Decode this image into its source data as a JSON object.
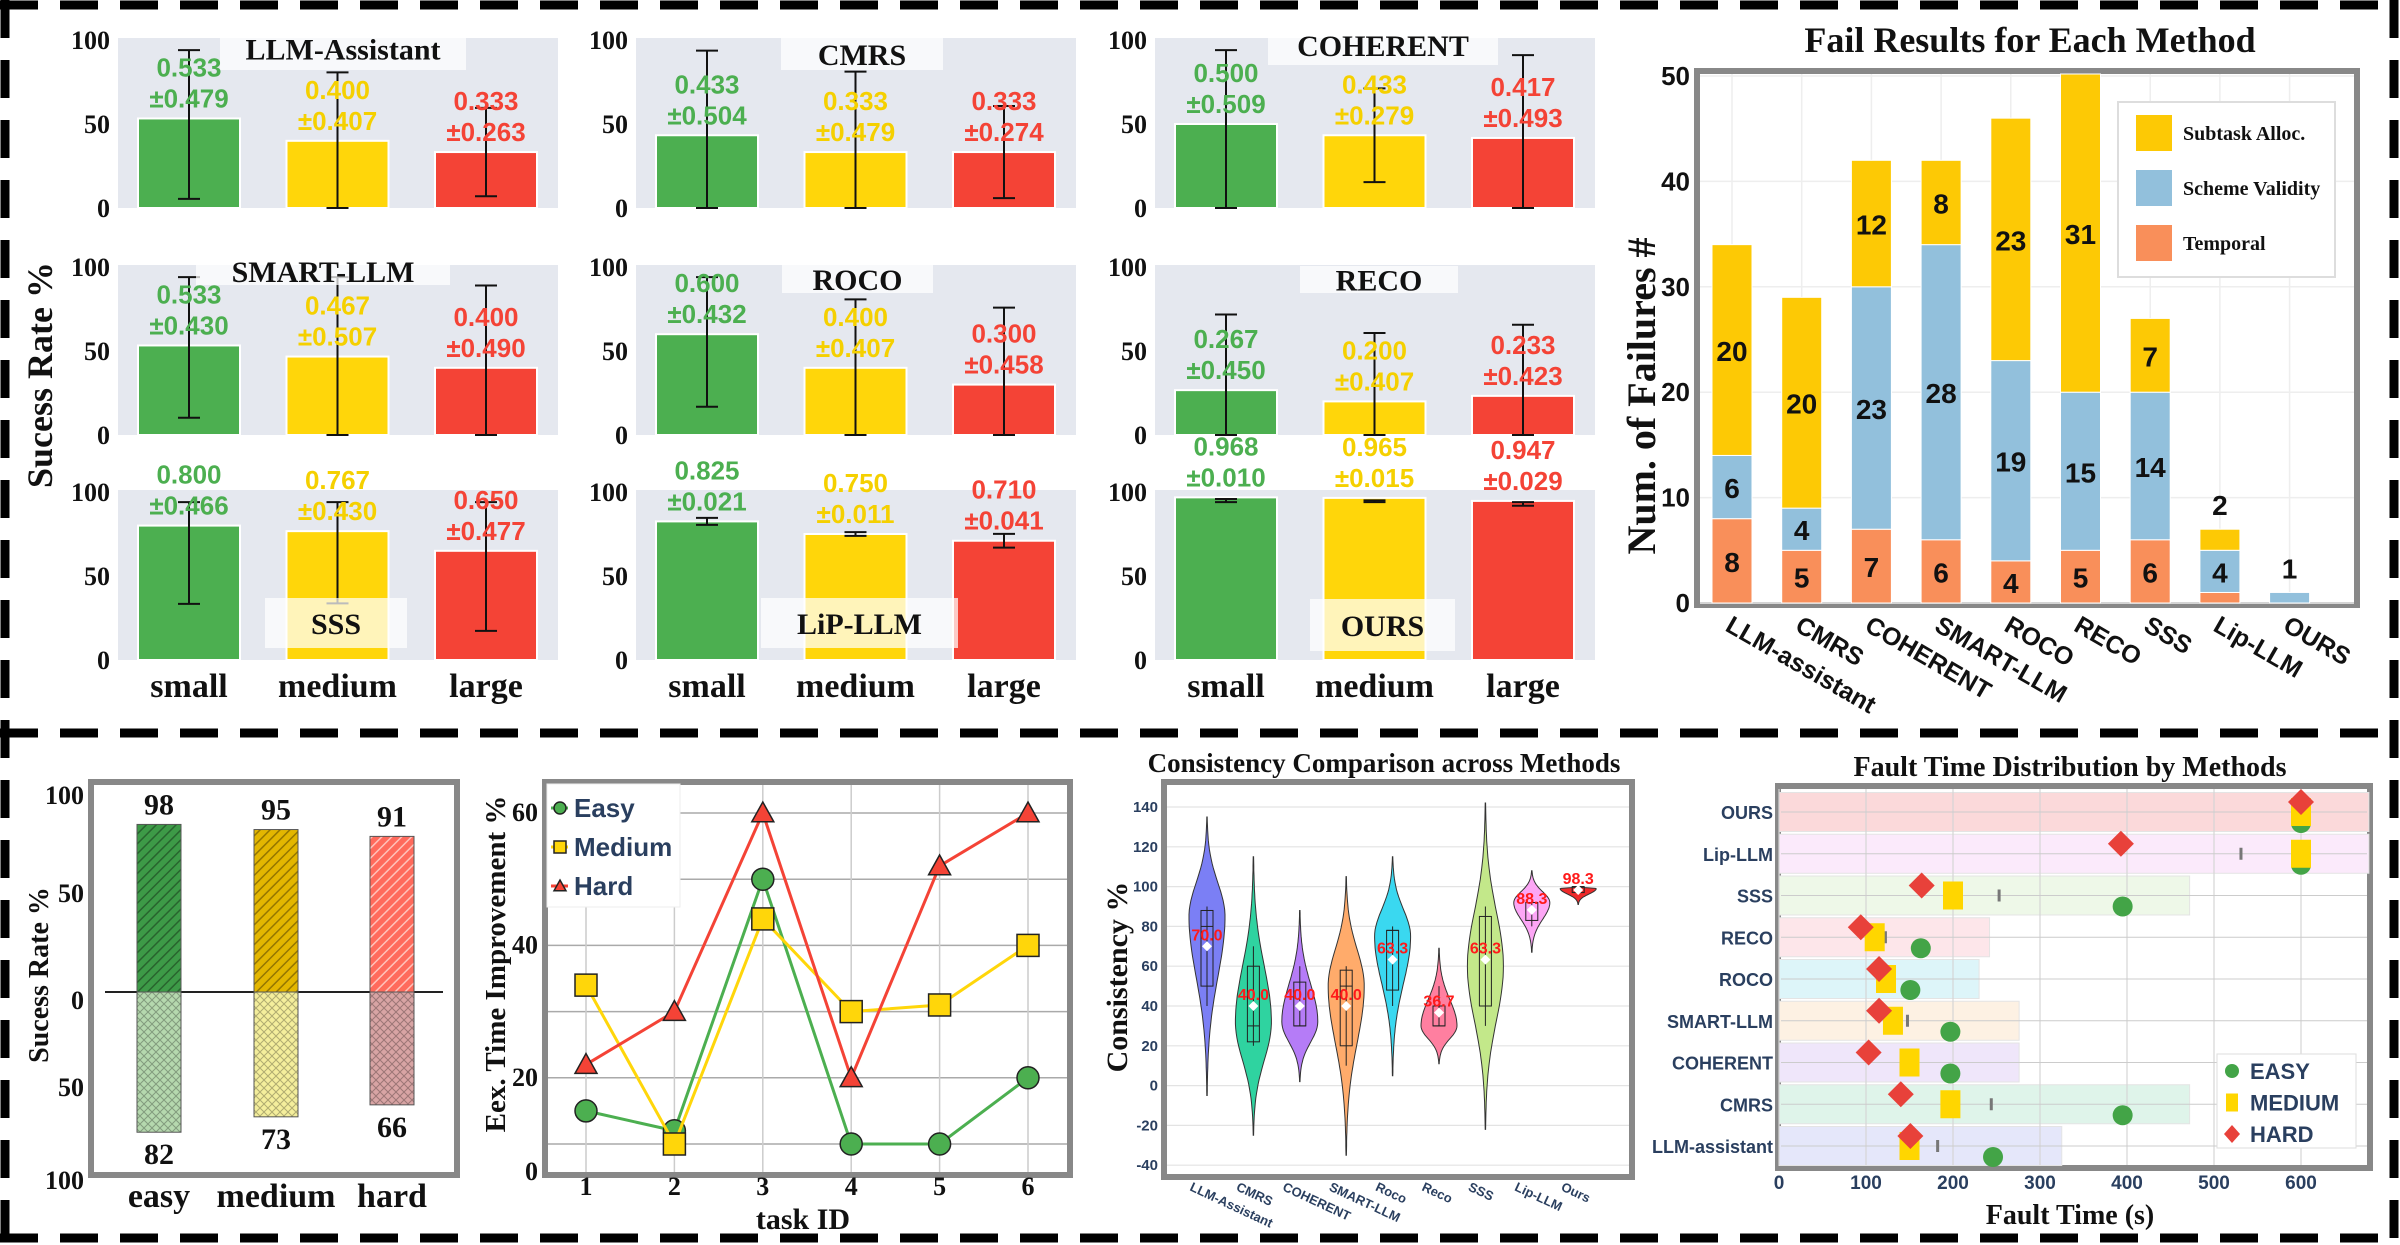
{
  "chart_data": [
    {
      "type": "bar",
      "ylabel": "Sucess Rate %",
      "categories": [
        "small",
        "medium",
        "large"
      ],
      "ylim": [
        0,
        100
      ],
      "yticks": [
        "0",
        "50",
        "100"
      ],
      "colors": [
        "#4caf50",
        "#ffd60a",
        "#f44336"
      ],
      "label_colors": [
        "#4caf50",
        "#f5d000",
        "#f44336"
      ],
      "panels": [
        {
          "title": "LLM-Assistant",
          "values": [
            "0.533",
            "0.400",
            "0.333"
          ],
          "errors": [
            "±0.479",
            "±0.407",
            "±0.263"
          ]
        },
        {
          "title": "CMRS",
          "values": [
            "0.433",
            "0.333",
            "0.333"
          ],
          "errors": [
            "±0.504",
            "±0.479",
            "±0.274"
          ]
        },
        {
          "title": "COHERENT",
          "values": [
            "0.500",
            "0.433",
            "0.417"
          ],
          "errors": [
            "±0.509",
            "±0.279",
            "±0.493"
          ]
        },
        {
          "title": "SMART-LLM",
          "values": [
            "0.533",
            "0.467",
            "0.400"
          ],
          "errors": [
            "±0.430",
            "±0.507",
            "±0.490"
          ]
        },
        {
          "title": "ROCO",
          "values": [
            "0.600",
            "0.400",
            "0.300"
          ],
          "errors": [
            "±0.432",
            "±0.407",
            "±0.458"
          ]
        },
        {
          "title": "RECO",
          "values": [
            "0.267",
            "0.200",
            "0.233"
          ],
          "errors": [
            "±0.450",
            "±0.407",
            "±0.423"
          ]
        },
        {
          "title": "SSS",
          "values": [
            "0.800",
            "0.767",
            "0.650"
          ],
          "errors": [
            "±0.466",
            "±0.430",
            "±0.477"
          ]
        },
        {
          "title": "LiP-LLM",
          "values": [
            "0.825",
            "0.750",
            "0.710"
          ],
          "errors": [
            "±0.021",
            "±0.011",
            "±0.041"
          ]
        },
        {
          "title": "OURS",
          "values": [
            "0.968",
            "0.965",
            "0.947"
          ],
          "errors": [
            "±0.010",
            "±0.015",
            "±0.029"
          ]
        }
      ]
    },
    {
      "type": "bar",
      "stacked": true,
      "title": "Fail Results for Each Method",
      "ylabel": "Num. of Failures #",
      "ylim": [
        0,
        50
      ],
      "yticks": [
        0,
        10,
        20,
        30,
        40,
        50
      ],
      "grid": true,
      "legend": "top-right",
      "categories": [
        "LLM-assistant",
        "CMRS",
        "COHERENT",
        "SMART-LLM",
        "ROCO",
        "RECO",
        "SSS",
        "Lip-LLM",
        "OURS"
      ],
      "series": [
        {
          "name": "Temporal",
          "color": "#f98f5a",
          "values": [
            8,
            5,
            7,
            6,
            4,
            5,
            6,
            1,
            0
          ]
        },
        {
          "name": "Scheme Validity",
          "color": "#92c0dc",
          "values": [
            6,
            4,
            23,
            28,
            19,
            15,
            14,
            4,
            1
          ]
        },
        {
          "name": "Subtask Alloc.",
          "color": "#fdc905",
          "values": [
            20,
            20,
            12,
            8,
            23,
            31,
            7,
            2,
            0
          ]
        }
      ]
    },
    {
      "type": "bar",
      "diverging": true,
      "ylabel": "Sucess Rate %",
      "categories": [
        "easy",
        "medium",
        "hard"
      ],
      "upper_values": [
        98,
        95,
        91
      ],
      "lower_values": [
        82,
        73,
        66
      ],
      "yticks": [
        "100",
        "50",
        "0",
        "50",
        "100"
      ],
      "colors": [
        "#3d9a47",
        "#e3b600",
        "#ff6a5c"
      ],
      "lower_colors": [
        "#b5d8ae",
        "#f4ee9c",
        "#d8a4a4"
      ]
    },
    {
      "type": "line",
      "xlabel": "task ID",
      "ylabel": "Eex. Time Improvement %",
      "x": [
        1,
        2,
        3,
        4,
        5,
        6
      ],
      "yticks": [
        0,
        20,
        40,
        60
      ],
      "grid": true,
      "legend": "top-left",
      "series": [
        {
          "name": "Easy",
          "color": "#4caf50",
          "marker": "circle",
          "values": [
            15,
            12,
            50,
            10,
            10,
            20
          ]
        },
        {
          "name": "Medium",
          "color": "#ffd60a",
          "marker": "square",
          "values": [
            34,
            10,
            44,
            30,
            31,
            40
          ]
        },
        {
          "name": "Hard",
          "color": "#f44336",
          "marker": "triangle",
          "values": [
            22,
            30,
            60,
            20,
            52,
            60
          ]
        }
      ]
    },
    {
      "type": "violin",
      "title": "Consistency Comparison across Methods",
      "ylabel": "Consistency %",
      "ylim": [
        -45,
        150
      ],
      "yticks": [
        -40,
        -20,
        0,
        20,
        40,
        60,
        80,
        100,
        120,
        140
      ],
      "categories": [
        "LLM-Assistant",
        "CMRS",
        "COHERENT",
        "SMART-LLM",
        "Roco",
        "Reco",
        "SSS",
        "Lip-LLM",
        "Ours"
      ],
      "violins": [
        {
          "color": "#7b7ff5",
          "range": [
            -5,
            135
          ],
          "mode": 85,
          "box": [
            50,
            88
          ],
          "median": 80,
          "whiskers": [
            40,
            90
          ],
          "mean": 70.0,
          "mean_label": "70.0"
        },
        {
          "color": "#2fd3a0",
          "range": [
            -25,
            115
          ],
          "mode": 32,
          "box": [
            22,
            60
          ],
          "median": 30,
          "whiskers": [
            20,
            70
          ],
          "mean": 40.0,
          "mean_label": "40.0"
        },
        {
          "color": "#b57cf7",
          "range": [
            2,
            88
          ],
          "mode": 32,
          "box": [
            30,
            52
          ],
          "median": 30,
          "whiskers": [
            30,
            60
          ],
          "mean": 40.0,
          "mean_label": "40.0"
        },
        {
          "color": "#ffab6b",
          "range": [
            -35,
            105
          ],
          "mode": 50,
          "box": [
            20,
            58
          ],
          "median": 50,
          "whiskers": [
            10,
            60
          ],
          "mean": 40.0,
          "mean_label": "40.0"
        },
        {
          "color": "#3ad8f0",
          "range": [
            5,
            115
          ],
          "mode": 75,
          "box": [
            48,
            78
          ],
          "median": 78,
          "whiskers": [
            40,
            80
          ],
          "mean": 63.3,
          "mean_label": "63.3"
        },
        {
          "color": "#ff7fa0",
          "range": [
            11,
            69
          ],
          "mode": 30,
          "box": [
            30,
            40
          ],
          "median": 30,
          "whiskers": [
            30,
            50
          ],
          "mean": 36.7,
          "mean_label": "36.7"
        },
        {
          "color": "#c3e88a",
          "range": [
            -22,
            142
          ],
          "mode": 60,
          "box": [
            40,
            85
          ],
          "median": 40,
          "whiskers": [
            30,
            90
          ],
          "mean": 63.3,
          "mean_label": "63.3"
        },
        {
          "color": "#fca6f5",
          "range": [
            67,
            108
          ],
          "mode": 92,
          "box": [
            83,
            92
          ],
          "median": 92,
          "whiskers": [
            80,
            92
          ],
          "mean": 88.3,
          "mean_label": "88.3"
        },
        {
          "color": "#ef2a2a",
          "range": [
            91,
            100
          ],
          "mode": 99,
          "box": [
            97,
            100
          ],
          "median": 100,
          "whiskers": [
            97,
            100
          ],
          "mean": 98.3,
          "mean_label": "98.3"
        }
      ]
    },
    {
      "type": "scatter",
      "title": "Fault Time Distribution by Methods",
      "xlabel": "Fault Time (s)",
      "xlim": [
        0,
        680
      ],
      "xticks": [
        0,
        100,
        200,
        300,
        400,
        500,
        600
      ],
      "legend": "bottom-right",
      "categories": [
        "OURS",
        "Lip-LLM",
        "SSS",
        "RECO",
        "ROCO",
        "SMART-LLM",
        "COHERENT",
        "CMRS",
        "LLM-assistant"
      ],
      "band_max": [
        680,
        680,
        472,
        242,
        230,
        276,
        276,
        472,
        325
      ],
      "band_colors": [
        "#fbd9da",
        "#fbeafb",
        "#eef8e8",
        "#fde6ea",
        "#ddf5f9",
        "#fdf1e3",
        "#efe6fa",
        "#dff4ea",
        "#e5e7fa"
      ],
      "series": [
        {
          "name": "EASY",
          "color": "#43a447",
          "marker": "circle",
          "values": [
            600,
            600,
            395,
            163,
            151,
            197,
            197,
            395,
            246
          ]
        },
        {
          "name": "MEDIUM",
          "color": "#ffd600",
          "marker": "square",
          "values": [
            600,
            600,
            200,
            110,
            123,
            131,
            150,
            197,
            150
          ]
        },
        {
          "name": "HARD",
          "color": "#e8413a",
          "marker": "diamond",
          "values": [
            600,
            393,
            164,
            94,
            115,
            115,
            103,
            140,
            151
          ]
        }
      ]
    }
  ]
}
